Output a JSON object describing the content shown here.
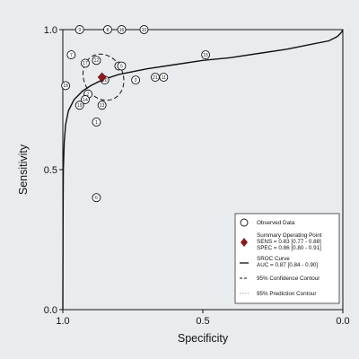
{
  "chart_data": {
    "type": "scatter",
    "title": "",
    "xlabel": "Specificity",
    "ylabel": "Sensitivity",
    "xlim": [
      1.0,
      0.0
    ],
    "ylim": [
      0.0,
      1.0
    ],
    "x_ticks": [
      "1.0",
      "0.5",
      "0.0"
    ],
    "y_ticks": [
      "0.0",
      "0.5",
      "1.0"
    ],
    "series": [
      {
        "name": "Observed Data",
        "points": [
          {
            "label": "1",
            "specificity": 0.88,
            "sensitivity": 0.67
          },
          {
            "label": "2",
            "specificity": 0.91,
            "sensitivity": 0.77
          },
          {
            "label": "3",
            "specificity": 0.74,
            "sensitivity": 0.82
          },
          {
            "label": "4",
            "specificity": 0.8,
            "sensitivity": 0.87
          },
          {
            "label": "5",
            "specificity": 0.79,
            "sensitivity": 0.87
          },
          {
            "label": "6",
            "specificity": 0.88,
            "sensitivity": 0.4
          },
          {
            "label": "7",
            "specificity": 0.97,
            "sensitivity": 0.91
          },
          {
            "label": "8",
            "specificity": 0.84,
            "sensitivity": 1.0
          },
          {
            "label": "9",
            "specificity": 0.94,
            "sensitivity": 1.0
          },
          {
            "label": "10",
            "specificity": 0.71,
            "sensitivity": 1.0
          },
          {
            "label": "11",
            "specificity": 0.64,
            "sensitivity": 0.83
          },
          {
            "label": "12",
            "specificity": 0.88,
            "sensitivity": 0.89
          },
          {
            "label": "13",
            "specificity": 0.86,
            "sensitivity": 0.73
          },
          {
            "label": "14",
            "specificity": 0.92,
            "sensitivity": 0.75
          },
          {
            "label": "15",
            "specificity": 0.49,
            "sensitivity": 0.91
          },
          {
            "label": "16",
            "specificity": 0.79,
            "sensitivity": 1.0
          },
          {
            "label": "17",
            "specificity": 0.92,
            "sensitivity": 0.88
          },
          {
            "label": "18",
            "specificity": 0.99,
            "sensitivity": 0.8
          },
          {
            "label": "19",
            "specificity": 0.94,
            "sensitivity": 0.73
          },
          {
            "label": "20",
            "specificity": 0.85,
            "sensitivity": 0.82
          },
          {
            "label": "21",
            "specificity": 0.67,
            "sensitivity": 0.83
          }
        ]
      }
    ],
    "summary_point": {
      "specificity": 0.86,
      "sensitivity": 0.83
    },
    "sroc_curve_points": [
      [
        1.0,
        0.0
      ],
      [
        0.999,
        0.35
      ],
      [
        0.998,
        0.5
      ],
      [
        0.995,
        0.6
      ],
      [
        0.99,
        0.66
      ],
      [
        0.98,
        0.71
      ],
      [
        0.96,
        0.75
      ],
      [
        0.93,
        0.78
      ],
      [
        0.9,
        0.8
      ],
      [
        0.86,
        0.82
      ],
      [
        0.8,
        0.84
      ],
      [
        0.7,
        0.86
      ],
      [
        0.6,
        0.875
      ],
      [
        0.5,
        0.89
      ],
      [
        0.4,
        0.9
      ],
      [
        0.3,
        0.915
      ],
      [
        0.2,
        0.93
      ],
      [
        0.1,
        0.95
      ],
      [
        0.05,
        0.96
      ],
      [
        0.02,
        0.975
      ],
      [
        0.005,
        0.99
      ],
      [
        0.0,
        1.0
      ]
    ],
    "confidence_contour": {
      "center_specificity": 0.855,
      "center_sensitivity": 0.83,
      "half_width_specificity": 0.07,
      "half_height_sensitivity": 0.085
    },
    "legend": {
      "placement": "bottom-right",
      "items": [
        {
          "key": "observed",
          "label": "Observed Data"
        },
        {
          "key": "summary",
          "lines": [
            "Summary Operating Point",
            "SENS = 0.83 [0.77 - 0.88]",
            "SPEC = 0.86 [0.80 - 0.91]"
          ]
        },
        {
          "key": "sroc",
          "lines": [
            "SROC Curve",
            "AUC = 0.87 [0.84 - 0.90]"
          ]
        },
        {
          "key": "confidence",
          "label": "95% Confidence Contour"
        },
        {
          "key": "prediction",
          "label": "95% Prediction Contour"
        }
      ]
    },
    "colors": {
      "background": "#e9ecef",
      "plot_line": "#111111",
      "summary_marker": "#8b1a1a",
      "prediction_line": "#999999"
    }
  }
}
